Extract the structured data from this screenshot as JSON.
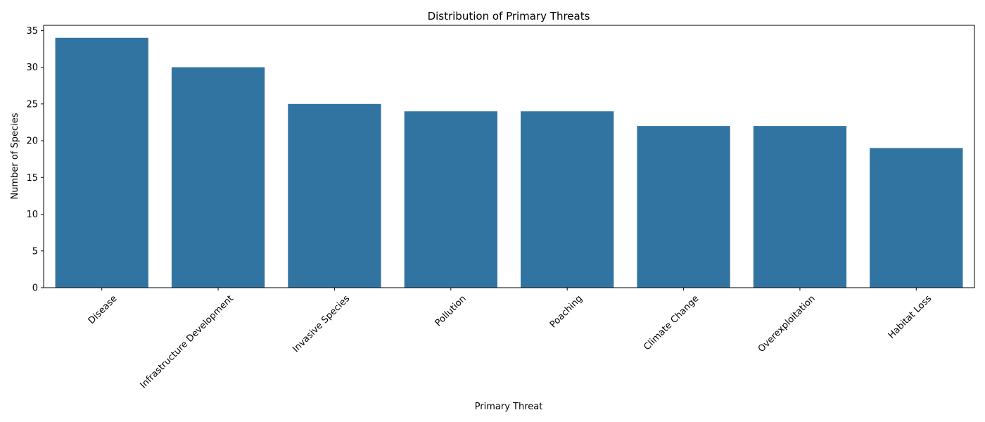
{
  "chart_data": {
    "type": "bar",
    "title": "Distribution of Primary Threats",
    "xlabel": "Primary Threat",
    "ylabel": "Number of Species",
    "categories": [
      "Disease",
      "Infrastructure Development",
      "Invasive Species",
      "Pollution",
      "Poaching",
      "Climate Change",
      "Overexploitation",
      "Habitat Loss"
    ],
    "values": [
      34,
      30,
      25,
      24,
      24,
      22,
      22,
      19
    ],
    "ylim": [
      0,
      35.7
    ],
    "yticks": [
      0,
      5,
      10,
      15,
      20,
      25,
      30,
      35
    ],
    "grid": false,
    "bar_color": "#3274a1"
  }
}
